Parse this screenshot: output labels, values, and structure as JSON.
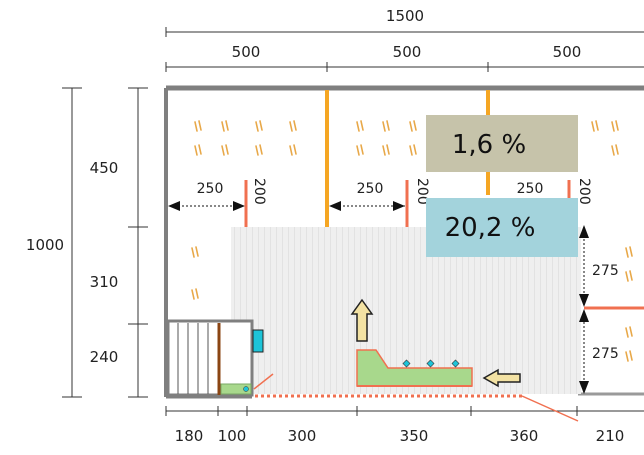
{
  "top_dims": {
    "total": "1500",
    "segments": [
      "500",
      "500",
      "500"
    ]
  },
  "left_dims": {
    "total": "1000",
    "segments": [
      "450",
      "310",
      "240"
    ]
  },
  "bottom_dims": {
    "segments": [
      "180",
      "100",
      "300",
      "350",
      "360",
      "210"
    ]
  },
  "gaps": {
    "horizontal": [
      "250",
      "250",
      "250"
    ],
    "vertical_tags": [
      "200",
      "200",
      "200"
    ],
    "right_side": [
      "275",
      "275"
    ]
  },
  "stats": {
    "upper_pct": "1,6 %",
    "lower_pct": "20,2 %"
  },
  "colors": {
    "wall": "#7f7f7f",
    "partition": "#f5a623",
    "red_post": "#f07050",
    "pct_upper_bg": "#c6c3aa",
    "pct_lower_bg": "#a3d3dc",
    "feeder_green": "#a8d88c",
    "arrow_fill": "#f3e2a3",
    "straw_icon": "#e8a848",
    "cyan_box": "#1ec4d8"
  },
  "icons": [
    "straw-icon",
    "arrow-up-icon",
    "arrow-left-icon",
    "stair-icon",
    "feeder-icon"
  ]
}
